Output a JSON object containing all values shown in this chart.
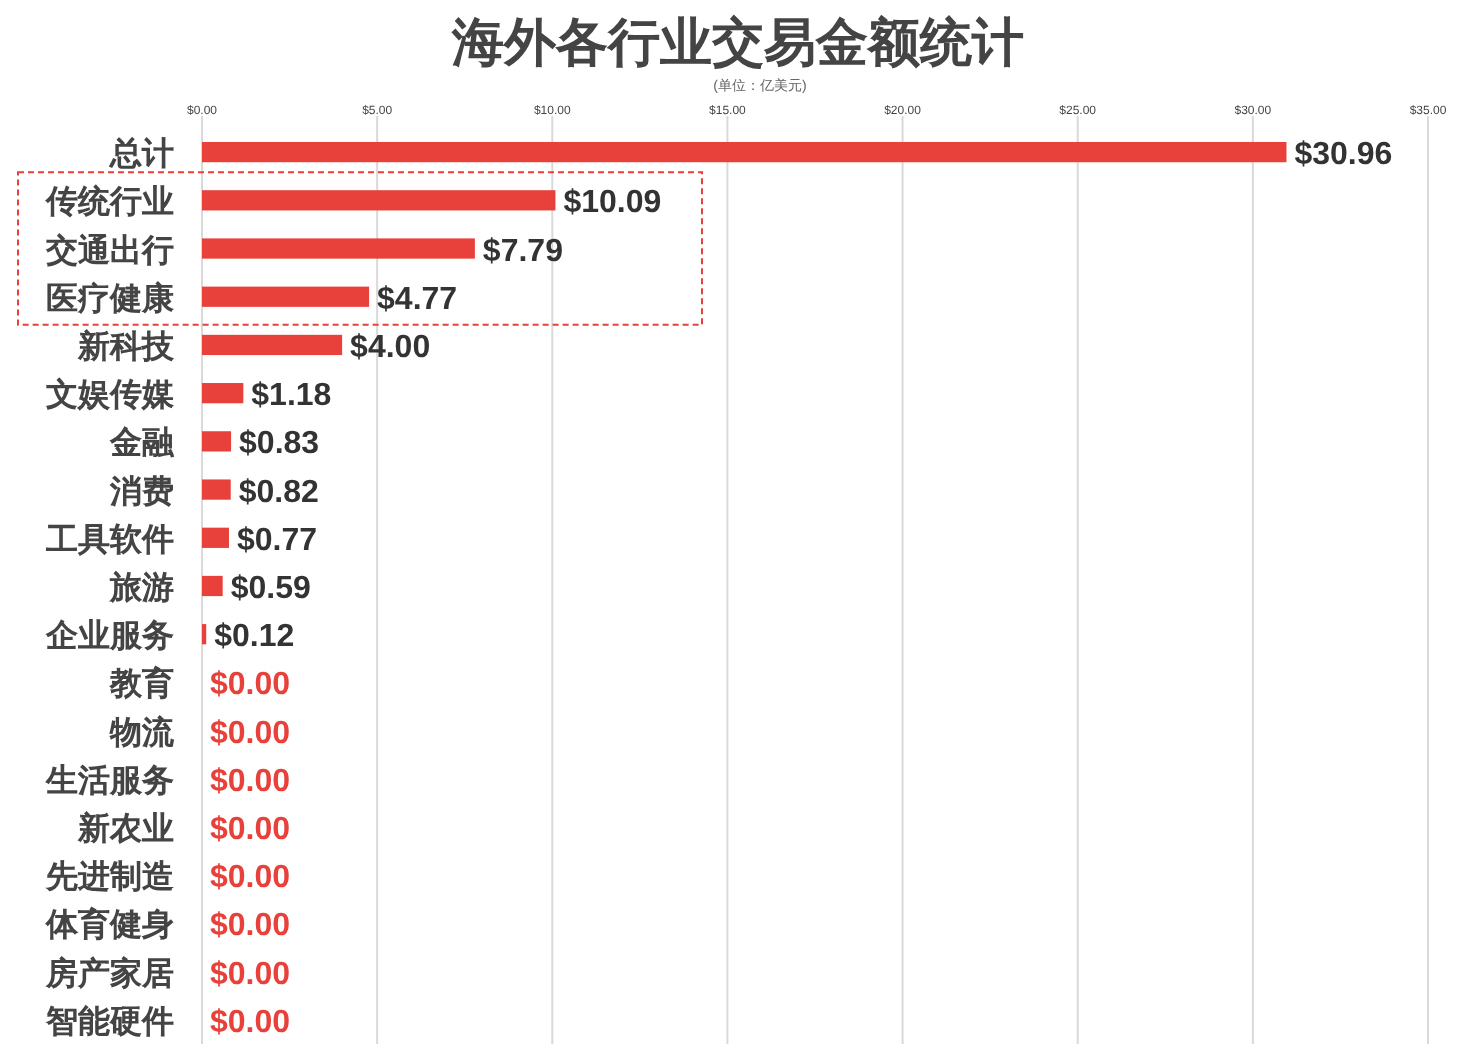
{
  "chart_data": {
    "type": "bar",
    "orientation": "horizontal",
    "title": "海外各行业交易金额统计",
    "subtitle": "(单位：亿美元)",
    "categories": [
      "总计",
      "传统行业",
      "交通出行",
      "医疗健康",
      "新科技",
      "文娱传媒",
      "金融",
      "消费",
      "工具软件",
      "旅游",
      "企业服务",
      "教育",
      "物流",
      "生活服务",
      "新农业",
      "先进制造",
      "体育健身",
      "房产家居",
      "智能硬件"
    ],
    "values": [
      30.96,
      10.09,
      7.79,
      4.77,
      4.0,
      1.18,
      0.83,
      0.82,
      0.77,
      0.59,
      0.12,
      0,
      0,
      0,
      0,
      0,
      0,
      0,
      0
    ],
    "value_labels": [
      "$30.96",
      "$10.09",
      "$7.79",
      "$4.77",
      "$4.00",
      "$1.18",
      "$0.83",
      "$0.82",
      "$0.77",
      "$0.59",
      "$0.12",
      "$0.00",
      "$0.00",
      "$0.00",
      "$0.00",
      "$0.00",
      "$0.00",
      "$0.00",
      "$0.00"
    ],
    "color": "#e8403a",
    "xlim": [
      0,
      35
    ],
    "xticks": [
      {
        "value": 0,
        "label": "$0.00"
      },
      {
        "value": 5,
        "label": "$5.00"
      },
      {
        "value": 10,
        "label": "$10.00"
      },
      {
        "value": 15,
        "label": "$15.00"
      },
      {
        "value": 20,
        "label": "$20.00"
      },
      {
        "value": 25,
        "label": "$25.00"
      },
      {
        "value": 30,
        "label": "$30.00"
      },
      {
        "value": 35,
        "label": "$35.00"
      }
    ],
    "grid": "x"
  }
}
